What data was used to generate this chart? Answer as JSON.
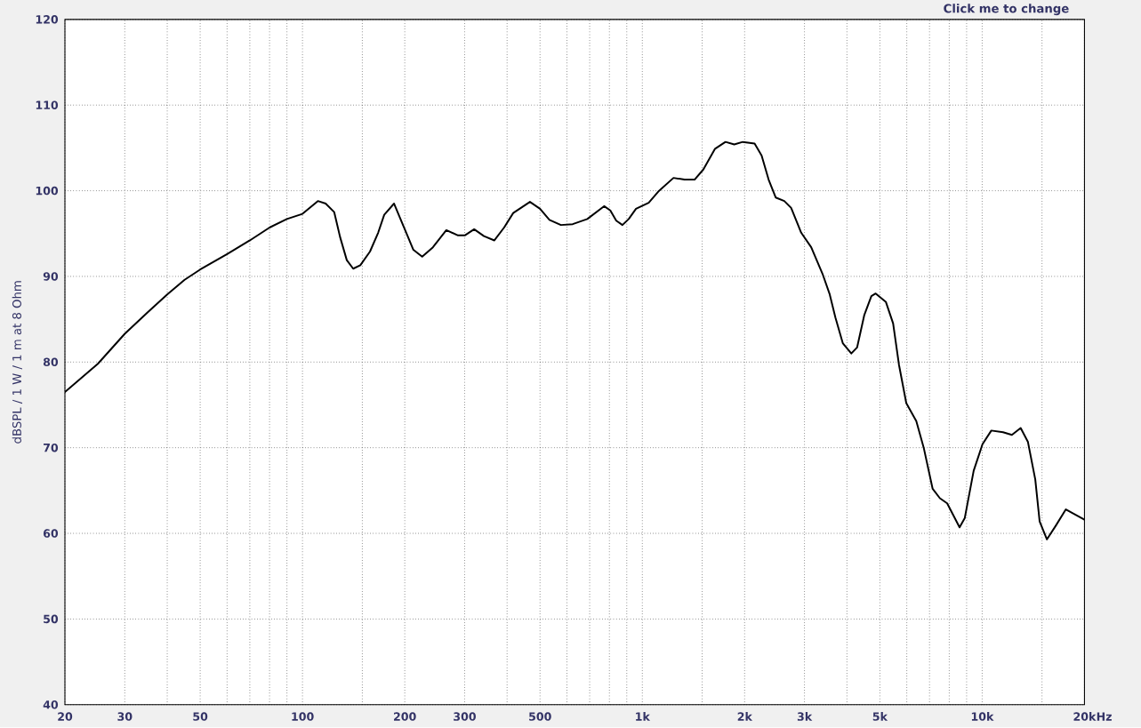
{
  "chart_data": {
    "type": "line",
    "ylabel": "dBSPL / 1 W / 1 m at 8 Ohm",
    "xlabel": "Hz",
    "annotations": [
      "Click me to change"
    ],
    "x": [
      20,
      25,
      30,
      35,
      40,
      45,
      50,
      60,
      70,
      80,
      90,
      100,
      111,
      117,
      124,
      129,
      135,
      141,
      148,
      158,
      167,
      174,
      186,
      200,
      212,
      225,
      242,
      265,
      286,
      301,
      320,
      342,
      367,
      392,
      417,
      467,
      500,
      533,
      576,
      624,
      689,
      772,
      805,
      838,
      874,
      912,
      958,
      1044,
      1114,
      1235,
      1331,
      1425,
      1513,
      1637,
      1757,
      1864,
      1976,
      2140,
      2244,
      2353,
      2470,
      2616,
      2741,
      2934,
      3140,
      3390,
      3560,
      3700,
      3890,
      4120,
      4285,
      4500,
      4720,
      4860,
      5210,
      5470,
      5690,
      5980,
      6400,
      6730,
      7150,
      7510,
      7890,
      8580,
      8890,
      9440,
      10020,
      10640,
      11520,
      12230,
      12980,
      13630,
      14330,
      14760,
      15510,
      16470,
      17630,
      20000
    ],
    "series": [
      {
        "color": "#000000",
        "values": [
          76.5,
          79.8,
          83.3,
          85.8,
          87.9,
          89.6,
          90.8,
          92.6,
          94.2,
          95.7,
          96.7,
          97.3,
          98.8,
          98.5,
          97.5,
          94.6,
          91.9,
          90.9,
          91.3,
          92.9,
          95.1,
          97.2,
          98.5,
          95.5,
          93.1,
          92.3,
          93.4,
          95.4,
          94.8,
          94.8,
          95.5,
          94.7,
          94.2,
          95.7,
          97.4,
          98.7,
          97.9,
          96.6,
          96.0,
          96.1,
          96.7,
          98.2,
          97.7,
          96.5,
          96.0,
          96.7,
          97.9,
          98.6,
          99.9,
          101.5,
          101.3,
          101.3,
          102.5,
          104.9,
          105.7,
          105.4,
          105.7,
          105.5,
          104.1,
          101.3,
          99.2,
          98.8,
          98.0,
          95.1,
          93.4,
          90.3,
          87.9,
          85.2,
          82.2,
          81.0,
          81.7,
          85.5,
          87.7,
          88.0,
          87.0,
          84.5,
          79.7,
          75.2,
          73.1,
          70.0,
          65.2,
          64.1,
          63.5,
          60.7,
          61.8,
          67.3,
          70.4,
          72.0,
          71.8,
          71.5,
          72.3,
          70.7,
          66.3,
          61.4,
          59.3,
          60.9,
          62.8,
          61.6
        ]
      }
    ],
    "log": "x",
    "xlim": [
      20,
      20000
    ],
    "ylim": [
      40,
      120
    ],
    "xticks": [
      20,
      30,
      {
        "value": 40,
        "label": null
      },
      50,
      {
        "value": 60,
        "label": null
      },
      {
        "value": 70,
        "label": null
      },
      {
        "value": 80,
        "label": null
      },
      {
        "value": 90,
        "label": null
      },
      100,
      {
        "value": 150,
        "label": null
      },
      200,
      300,
      {
        "value": 400,
        "label": null
      },
      500,
      {
        "value": 600,
        "label": null
      },
      {
        "value": 700,
        "label": null
      },
      {
        "value": 800,
        "label": null
      },
      {
        "value": 900,
        "label": null
      },
      {
        "value": 1000,
        "label": "1k"
      },
      {
        "value": 1500,
        "label": null
      },
      {
        "value": 2000,
        "label": "2k"
      },
      {
        "value": 3000,
        "label": "3k"
      },
      {
        "value": 4000,
        "label": null
      },
      {
        "value": 5000,
        "label": "5k"
      },
      {
        "value": 6000,
        "label": null
      },
      {
        "value": 7000,
        "label": null
      },
      {
        "value": 8000,
        "label": null
      },
      {
        "value": 9000,
        "label": null
      },
      {
        "value": 10000,
        "label": "10k"
      },
      {
        "value": 15000,
        "label": null
      },
      {
        "value": 20000,
        "label": "20k"
      }
    ],
    "yticks": [
      40,
      50,
      60,
      70,
      80,
      90,
      100,
      110,
      120
    ],
    "grid": true,
    "marker": "none",
    "line_style": "solid"
  }
}
